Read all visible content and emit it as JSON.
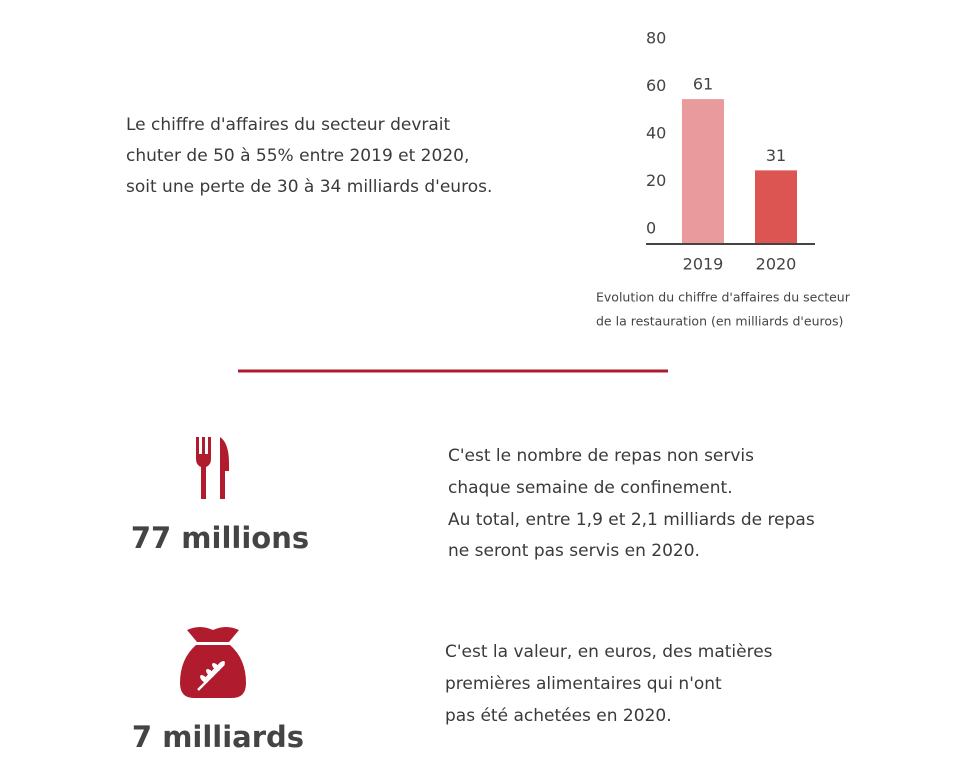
{
  "intro": {
    "lines": [
      "Le chiffre d'affaires du secteur devrait",
      "chuter de 50 à 55% entre 2019 et 2020,",
      "soit une perte de 30 à 34 milliards d'euros."
    ]
  },
  "chart_data": {
    "type": "bar",
    "categories": [
      "2019",
      "2020"
    ],
    "values": [
      61,
      31
    ],
    "colors": [
      "#e89a9c",
      "#dc5552"
    ],
    "ylim": [
      0,
      80
    ],
    "yticks": [
      0,
      20,
      40,
      60,
      80
    ],
    "caption": [
      "Evolution du chiffre d'affaires du secteur",
      "de la restauration (en milliards d'euros)"
    ]
  },
  "stats": [
    {
      "figure": "77 millions",
      "lines": [
        "C'est le nombre de repas non servis",
        "chaque semaine de confinement.",
        "Au total, entre 1,9 et 2,1 milliards de repas",
        "ne seront pas servis en 2020."
      ]
    },
    {
      "figure": "7 milliards",
      "lines": [
        "C'est la valeur, en euros, des matières",
        "premières alimentaires qui n'ont",
        "pas été achetées en 2020."
      ]
    }
  ]
}
